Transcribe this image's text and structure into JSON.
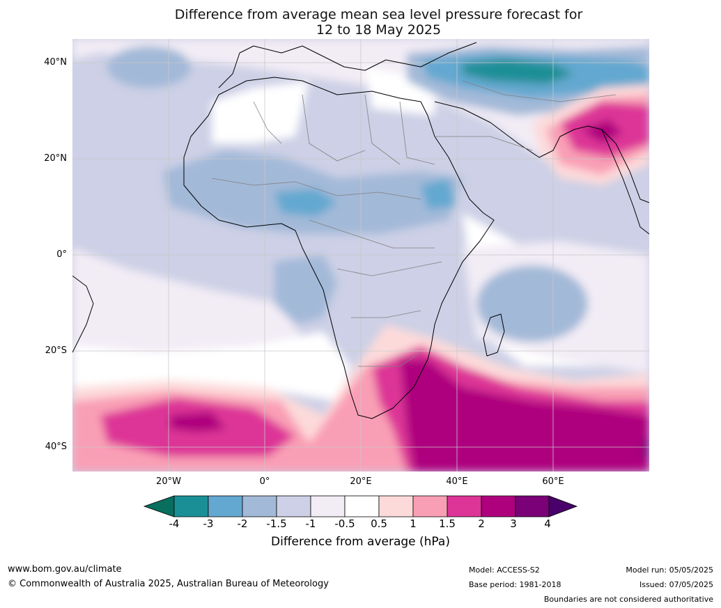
{
  "title": {
    "line1": "Difference from average mean sea level pressure forecast for",
    "line2": "12 to 18 May 2025"
  },
  "map": {
    "lat_labels": [
      "40°N",
      "20°N",
      "0°",
      "20°S",
      "40°S"
    ],
    "lon_labels": [
      "20°W",
      "0°",
      "20°E",
      "40°E",
      "60°E"
    ],
    "grid": true,
    "ocean_colour": "#ffffff",
    "coast_colour": "#000000",
    "border_colour": "#808080",
    "grid_colour": "#c8c8c8"
  },
  "colorbar": {
    "title": "Difference from average (hPa)",
    "ticks": [
      "-4",
      "-3",
      "-2",
      "-1.5",
      "-1",
      "-0.5",
      "0.5",
      "1",
      "1.5",
      "2",
      "3",
      "4"
    ],
    "colours": {
      "below_-4": "#086e5e",
      "-4_-3": "#1b8f96",
      "-3_-2": "#63a8d0",
      "-2_-1.5": "#a3b9d8",
      "-1.5_-1": "#cdd0e6",
      "-1_-0.5": "#f2ecf5",
      "-0.5_0.5": "#ffffff",
      "0.5_1": "#fddada",
      "1_1.5": "#f99fb5",
      "1.5_2": "#dd3497",
      "2_3": "#ae017e",
      "3_4": "#7a0177",
      "above_4": "#49006a"
    }
  },
  "footer": {
    "website": "www.bom.gov.au/climate",
    "copyright": "© Commonwealth of Australia 2025, Australian Bureau of Meteorology",
    "model": "Model: ACCESS-S2",
    "base_period": "Base period: 1981-2018",
    "model_run": "Model run: 05/05/2025",
    "issued": "Issued: 07/05/2025",
    "disclaimer": "Boundaries are not considered authoritative"
  }
}
